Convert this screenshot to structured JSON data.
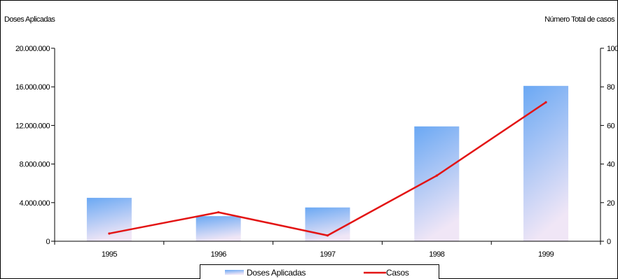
{
  "chart_data": {
    "type": "bar",
    "categories": [
      "1995",
      "1996",
      "1997",
      "1998",
      "1999"
    ],
    "series": [
      {
        "name": "Doses Aplicadas",
        "type": "bar",
        "axis": "left",
        "values": [
          4500000,
          2600000,
          3500000,
          11900000,
          16100000
        ]
      },
      {
        "name": "Casos",
        "type": "line",
        "axis": "right",
        "values": [
          4,
          15,
          3,
          34,
          72
        ]
      }
    ],
    "ylabel": "Doses Aplicadas",
    "y2label": "Número Total de casos",
    "ylim": [
      0,
      20000000
    ],
    "y2lim": [
      0,
      100
    ],
    "yticks": [
      0,
      4000000,
      8000000,
      12000000,
      16000000,
      20000000
    ],
    "ytick_labels": [
      "0",
      "4.000.000",
      "8.000.000",
      "12.000.000",
      "16.000.000",
      "20.000.000"
    ],
    "y2ticks": [
      0,
      20,
      40,
      60,
      80,
      100
    ],
    "y2tick_labels": [
      "0",
      "20",
      "40",
      "60",
      "80",
      "100"
    ],
    "grid": false,
    "legend_position": "bottom",
    "colors": {
      "bar_top": "#6aa8f4",
      "bar_bottom": "#f0e6f6",
      "line": "#e31414",
      "axis": "#000000"
    }
  }
}
